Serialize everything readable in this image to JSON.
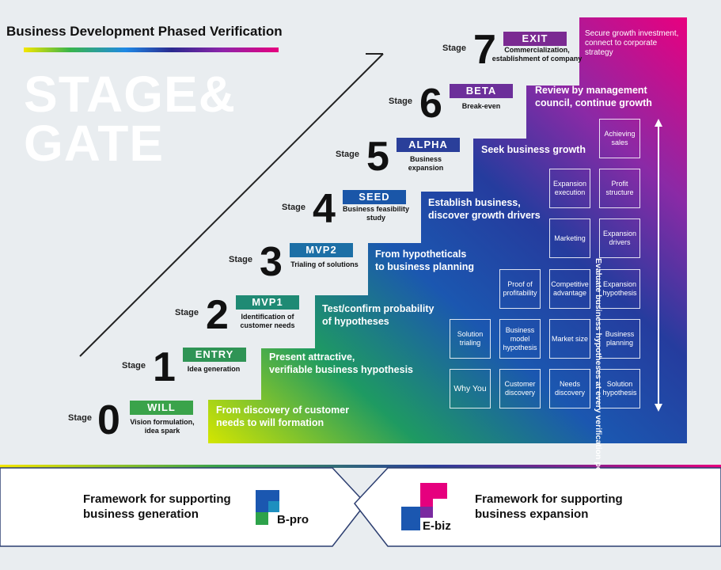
{
  "header": {
    "title": "Business Development Phased Verification",
    "big_line1": "STAGE&",
    "big_line2": "GATE"
  },
  "stage_word": "Stage",
  "stages": [
    {
      "num": "0",
      "badge": "WILL",
      "badge_color": "#3aa34a",
      "sub1": "Vision formulation,",
      "sub2": "idea spark",
      "text1": "From discovery of customer",
      "text2": "needs to will formation"
    },
    {
      "num": "1",
      "badge": "ENTRY",
      "badge_color": "#2f9455",
      "sub1": "Idea generation",
      "sub2": "",
      "text1": "Present attractive,",
      "text2": "verifiable business hypothesis"
    },
    {
      "num": "2",
      "badge": "MVP1",
      "badge_color": "#1f8a74",
      "sub1": "Identification of",
      "sub2": "customer needs",
      "text1": "Test/confirm probability",
      "text2": "of hypotheses"
    },
    {
      "num": "3",
      "badge": "MVP2",
      "badge_color": "#1c6fa6",
      "sub1": "Trialing of solutions",
      "sub2": "",
      "text1": "From hypotheticals",
      "text2": "to business planning"
    },
    {
      "num": "4",
      "badge": "SEED",
      "badge_color": "#1a56a8",
      "sub1": "Business feasibility",
      "sub2": "study",
      "text1": "Establish business,",
      "text2": "discover growth drivers"
    },
    {
      "num": "5",
      "badge": "ALPHA",
      "badge_color": "#2a3f9a",
      "sub1": "Business expansion",
      "sub2": "",
      "text1": "Seek business growth",
      "text2": ""
    },
    {
      "num": "6",
      "badge": "BETA",
      "badge_color": "#6c2f9a",
      "sub1": "Break-even",
      "sub2": "",
      "text1": "Review by management",
      "text2": "council, continue growth"
    },
    {
      "num": "7",
      "badge": "EXIT",
      "badge_color": "#7b2a92",
      "sub1": "Commercialization,",
      "sub2": "establishment of company",
      "text1": "Secure growth investment,",
      "text2": "connect to corporate",
      "text3": "strategy"
    }
  ],
  "grid_cells": [
    {
      "id": "why-you",
      "label": "Why You"
    },
    {
      "id": "customer-discovery",
      "label": "Customer discovery"
    },
    {
      "id": "needs-discovery",
      "label": "Needs discovery"
    },
    {
      "id": "solution-hypothesis",
      "label": "Solution hypothesis"
    },
    {
      "id": "solution-trialing",
      "label": "Solution trialing"
    },
    {
      "id": "business-model-hypothesis",
      "label": "Business model hypothesis"
    },
    {
      "id": "market-size",
      "label": "Market size"
    },
    {
      "id": "business-planning",
      "label": "Business planning"
    },
    {
      "id": "proof-of-profitability",
      "label": "Proof of profitability"
    },
    {
      "id": "competitive-advantage",
      "label": "Competitive advantage"
    },
    {
      "id": "expansion-hypothesis",
      "label": "Expansion hypothesis"
    },
    {
      "id": "marketing",
      "label": "Marketing"
    },
    {
      "id": "expansion-drivers",
      "label": "Expansion drivers"
    },
    {
      "id": "expansion-execution",
      "label": "Expansion execution"
    },
    {
      "id": "profit-structure",
      "label": "Profit structure"
    },
    {
      "id": "achieving-sales",
      "label": "Achieving sales"
    }
  ],
  "side_label": "Evaluate business hypotheses at every verification point",
  "footer": {
    "left_line1": "Framework for supporting",
    "left_line2": "business generation",
    "left_logo": "B-pro",
    "right_line1": "Framework for supporting",
    "right_line2": "business expansion",
    "right_logo": "E-biz"
  },
  "colors": {
    "gradient_green": "#c8e000",
    "gradient_blue": "#1b3aa0",
    "gradient_purple": "#7a2aa0",
    "gradient_magenta": "#e6007e"
  }
}
